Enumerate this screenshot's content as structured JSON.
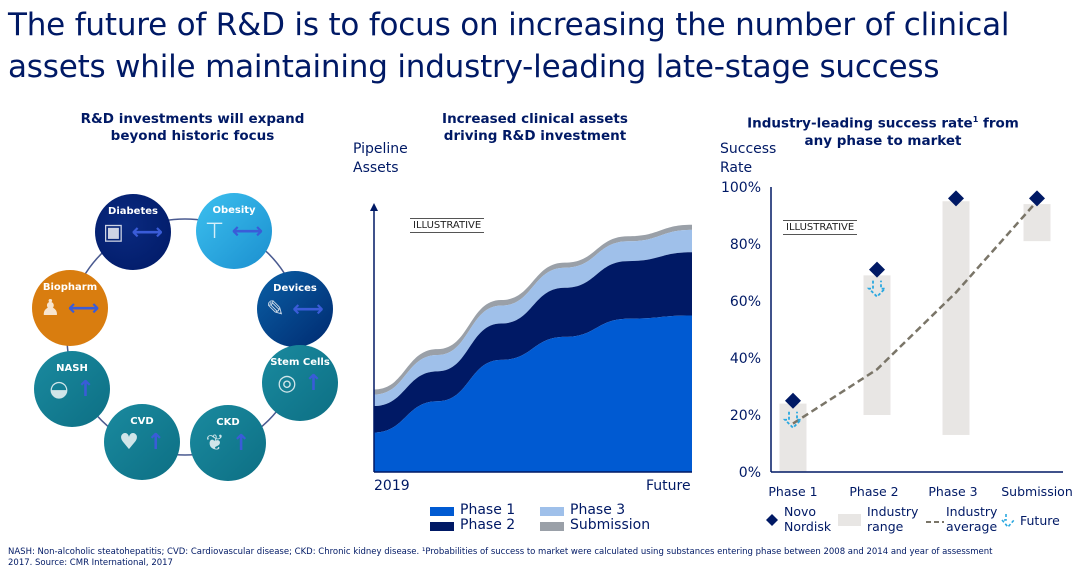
{
  "title": "The future of R&D is to focus on increasing the number of clinical assets while maintaining industry-leading late-stage success",
  "left": {
    "heading": "R&D investments will expand beyond historic focus",
    "areas": [
      {
        "name": "Diabetes",
        "icon": "glucose-meter-icon",
        "trend": "expand-arrow"
      },
      {
        "name": "Obesity",
        "icon": "scale-icon",
        "trend": "expand-arrow"
      },
      {
        "name": "Devices",
        "icon": "pen-injector-icon",
        "trend": "expand-arrow"
      },
      {
        "name": "Stem Cells",
        "icon": "petri-dish-icon",
        "trend": "up-arrow"
      },
      {
        "name": "CKD",
        "icon": "kidney-icon",
        "trend": "up-arrow"
      },
      {
        "name": "CVD",
        "icon": "heart-icon",
        "trend": "up-arrow"
      },
      {
        "name": "NASH",
        "icon": "liver-icon",
        "trend": "up-arrow"
      },
      {
        "name": "Biopharm",
        "icon": "family-icon",
        "trend": "expand-arrow"
      }
    ],
    "colors": {
      "navy": "#001965",
      "light": "#1fa3dd",
      "mid": "#0a5a99",
      "teal": "#13798f",
      "orange": "#d97d0f"
    }
  },
  "chart_data": [
    {
      "type": "area",
      "title": "Increased clinical assets driving R&D investment",
      "ylabel": "Pipeline Assets",
      "xlabel": "",
      "x_tick_labels": [
        "2019",
        "Future"
      ],
      "x": [
        0,
        20,
        40,
        60,
        80,
        100
      ],
      "ylim": [
        0,
        100
      ],
      "stacked": true,
      "annotation": "ILLUSTRATIVE",
      "series": [
        {
          "name": "Phase 1",
          "color": "#005ad2",
          "values": [
            14.8,
            26.5,
            42.0,
            50.6,
            57.4,
            58.6
          ]
        },
        {
          "name": "Phase 2",
          "color": "#001965",
          "values": [
            9.9,
            11.2,
            13.6,
            18.4,
            21.6,
            23.7
          ]
        },
        {
          "name": "Phase 3",
          "color": "#9fc0ea",
          "values": [
            4.3,
            6.1,
            6.7,
            7.5,
            7.4,
            8.4
          ]
        },
        {
          "name": "Submission",
          "color": "#9aa0a8",
          "values": [
            1.9,
            2.2,
            2.1,
            1.9,
            1.9,
            1.9
          ]
        }
      ],
      "legend_position": "bottom"
    },
    {
      "type": "bar",
      "title": "Industry-leading success rate¹ from any phase to market",
      "title_main": "Industry-leading success rate",
      "title_sup": "1",
      "title_rest": "from any phase to market",
      "ylabel": "Success Rate",
      "categories": [
        "Phase 1",
        "Phase 2",
        "Phase 3",
        "Submission"
      ],
      "ylim": [
        0,
        100
      ],
      "yticks": [
        "0%",
        "20%",
        "40%",
        "60%",
        "80%",
        "100%"
      ],
      "annotation": "ILLUSTRATIVE",
      "industry_range": [
        [
          0,
          24
        ],
        [
          20,
          69
        ],
        [
          13,
          95
        ],
        [
          81,
          94
        ]
      ],
      "novo_nordisk": [
        25,
        71,
        96,
        96
      ],
      "industry_average": [
        17,
        36,
        63,
        95
      ],
      "future_down": [
        true,
        true,
        false,
        false
      ],
      "legend": [
        "Novo Nordisk",
        "Industry range",
        "Industry average",
        "Future"
      ],
      "colors": {
        "range": "#e8e6e4",
        "novo": "#001965",
        "avg": "#7a7568",
        "future": "#2aa8e0"
      }
    }
  ],
  "footnote": "NASH: Non-alcoholic steatohepatitis; CVD: Cardiovascular disease; CKD: Chronic kidney disease. ¹Probabilities of success to market were calculated using substances entering phase between 2008 and 2014 and year of assessment 2017. Source: CMR International, 2017"
}
